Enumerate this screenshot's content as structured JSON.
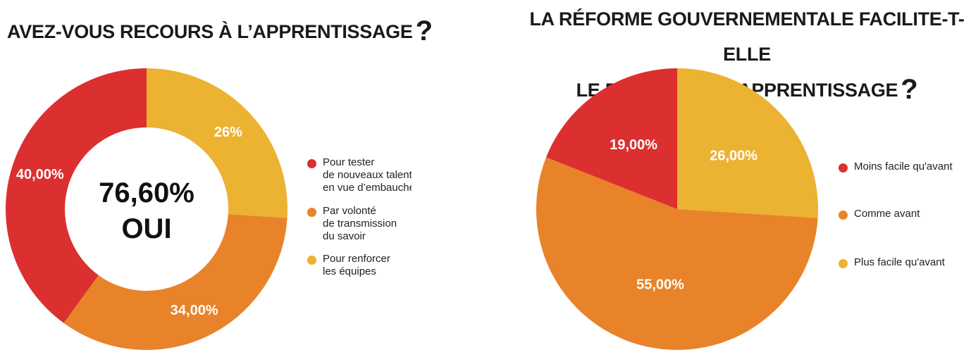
{
  "charts": [
    {
      "title": "AVEZ-VOUS RECOURS À L’APPRENTISSAGE",
      "title_mark": "?",
      "center_value": "76,60%",
      "center_label": "OUI",
      "legend": [
        [
          "Pour tester",
          "de nouveaux talents",
          "en vue d’embauche"
        ],
        [
          "Par volonté",
          "de transmission",
          "du savoir"
        ],
        [
          "Pour renforcer",
          "les équipes"
        ]
      ]
    },
    {
      "title_line1": "LA RÉFORME GOUVERNEMENTALE FACILITE-T-ELLE",
      "title_line2": "LE RECOURS À L’APPRENTISSAGE",
      "title_mark": "?",
      "legend": [
        [
          "Moins facile qu'avant"
        ],
        [
          "Comme avant"
        ],
        [
          "Plus facile qu'avant"
        ]
      ]
    }
  ],
  "chart_data": [
    {
      "type": "pie",
      "donut": true,
      "title": "AVEZ-VOUS RECOURS À L’APPRENTISSAGE ?",
      "categories": [
        "Pour tester de nouveaux talents en vue d’embauche",
        "Par volonté de transmission du savoir",
        "Pour renforcer les équipes"
      ],
      "values": [
        40,
        34,
        26
      ],
      "labels": [
        "40,00%",
        "34,00%",
        "26%"
      ],
      "colors": [
        "#dc2f2f",
        "#e8832a",
        "#ecb232"
      ],
      "center_text": [
        "76,60%",
        "OUI"
      ],
      "legend_position": "right"
    },
    {
      "type": "pie",
      "title": "LA RÉFORME GOUVERNEMENTALE FACILITE-T-ELLE LE RECOURS À L’APPRENTISSAGE ?",
      "categories": [
        "Moins facile qu'avant",
        "Comme avant",
        "Plus facile qu'avant"
      ],
      "values": [
        19,
        55,
        26
      ],
      "labels": [
        "19,00%",
        "55,00%",
        "26,00%"
      ],
      "colors": [
        "#dc2f2f",
        "#e8832a",
        "#ecb232"
      ],
      "legend_position": "right"
    }
  ]
}
